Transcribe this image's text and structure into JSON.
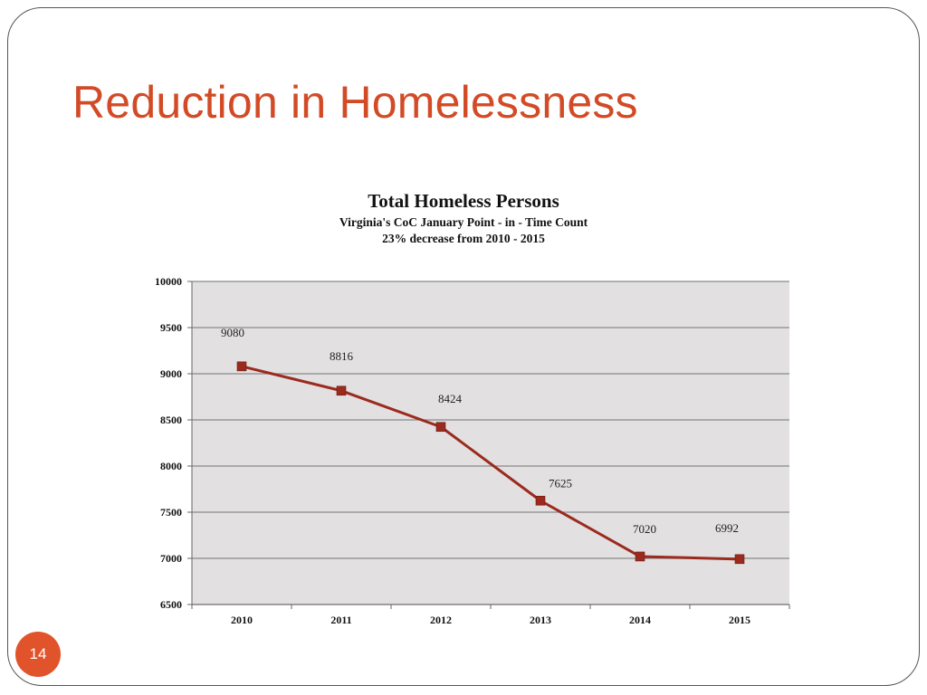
{
  "slide": {
    "title": "Reduction in Homelessness",
    "page_number": "14"
  },
  "colors": {
    "title": "#d24b26",
    "series": "#9b2a1f",
    "plot_bg": "#e2e0e1",
    "grid": "#8a8a8a",
    "badge": "#e0532b"
  },
  "chart_data": {
    "type": "line",
    "title": "Total Homeless Persons",
    "subtitle": "Virginia's CoC January Point - in - Time Count",
    "subtitle2": "23% decrease from  2010 - 2015",
    "xlabel": "",
    "ylabel": "",
    "categories": [
      "2010",
      "2011",
      "2012",
      "2013",
      "2014",
      "2015"
    ],
    "series": [
      {
        "name": "Total Homeless Persons",
        "values": [
          9080,
          8816,
          8424,
          7625,
          7020,
          6992
        ]
      }
    ],
    "ylim": [
      6500,
      10000
    ],
    "yticks": [
      10000,
      9500,
      9000,
      8500,
      8000,
      7500,
      7000,
      6500
    ],
    "grid": true,
    "legend": "none"
  }
}
